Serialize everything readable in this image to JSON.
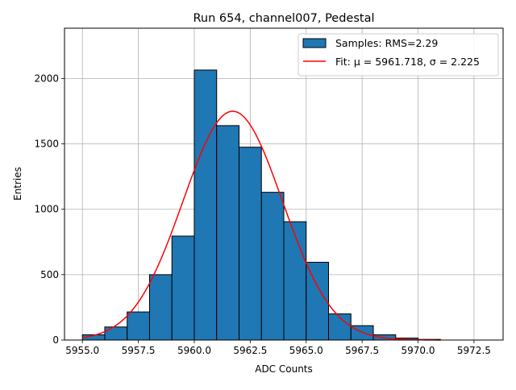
{
  "chart_data": {
    "type": "bar",
    "title": "Run 654, channel007, Pedestal",
    "xlabel": "ADC Counts",
    "ylabel": "Entries",
    "xlim": [
      5954.2,
      5973.8
    ],
    "ylim": [
      0,
      2385
    ],
    "x_ticks": [
      5955.0,
      5957.5,
      5960.0,
      5962.5,
      5965.0,
      5967.5,
      5970.0,
      5972.5
    ],
    "x_tick_labels": [
      "5955.0",
      "5957.5",
      "5960.0",
      "5962.5",
      "5965.0",
      "5967.5",
      "5970.0",
      "5972.5"
    ],
    "y_ticks": [
      0,
      500,
      1000,
      1500,
      2000
    ],
    "y_tick_labels": [
      "0",
      "500",
      "1000",
      "1500",
      "2000"
    ],
    "grid": true,
    "legend_position": "top-right",
    "histogram": {
      "name": "Samples: RMS=2.29",
      "color": "#1f77b4",
      "edge_color": "#000000",
      "bin_edges": [
        5955,
        5956,
        5957,
        5958,
        5959,
        5960,
        5961,
        5962,
        5963,
        5964,
        5965,
        5966,
        5967,
        5968,
        5969,
        5970,
        5971
      ],
      "counts": [
        40,
        100,
        215,
        500,
        795,
        2065,
        1640,
        1475,
        1130,
        905,
        595,
        200,
        110,
        40,
        15,
        5
      ]
    },
    "fit": {
      "name": "Fit: μ = 5961.718, σ = 2.225",
      "color": "#ff0000",
      "mu": 5961.718,
      "sigma": 2.225,
      "amplitude": 1750,
      "x_range": [
        5955,
        5971
      ]
    }
  }
}
